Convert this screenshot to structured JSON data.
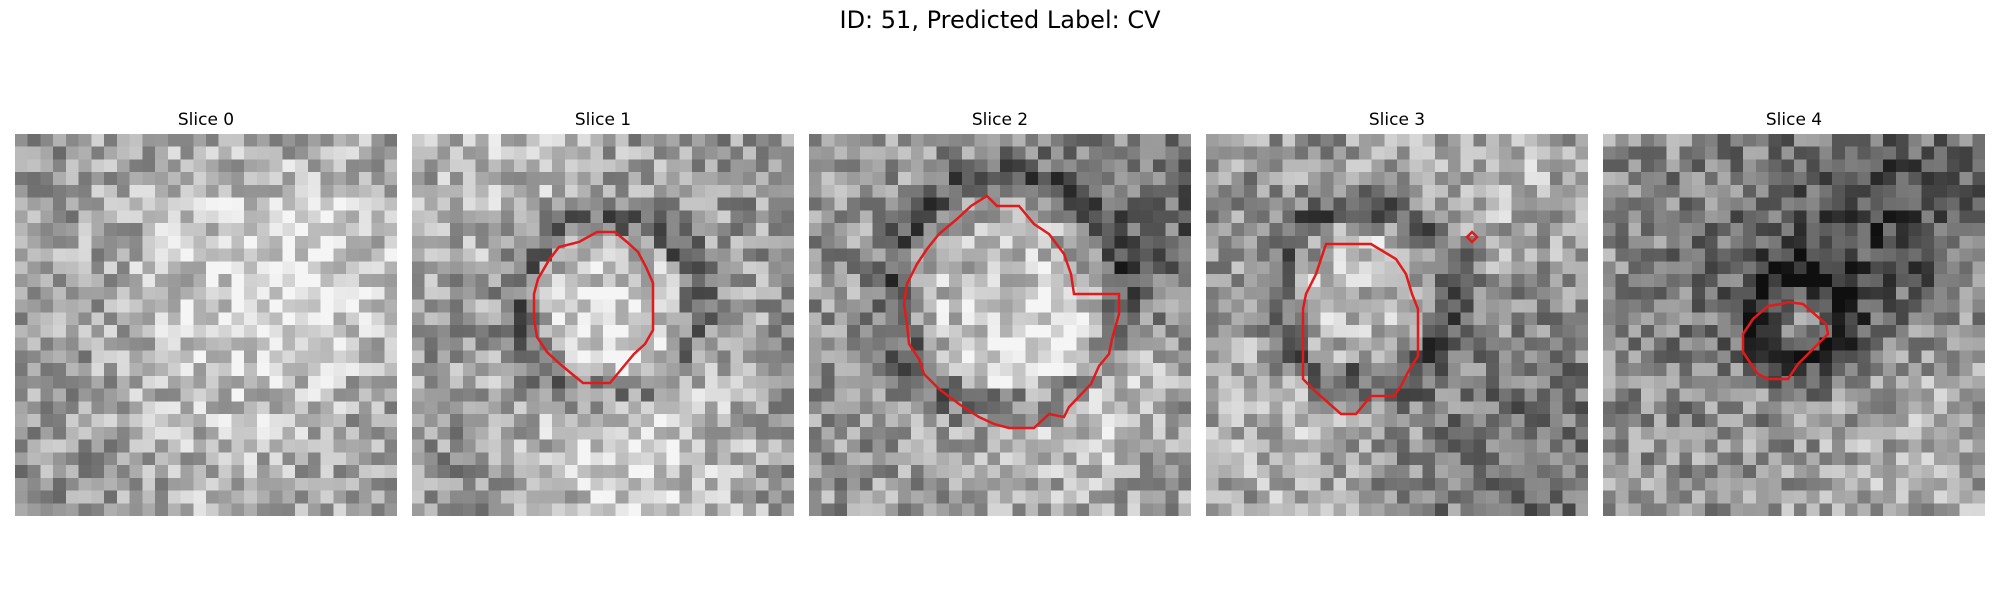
{
  "figure": {
    "title": "ID: 51, Predicted Label: CV",
    "contour_color": "#e11b1b"
  },
  "slices": [
    {
      "label": "Slice 0",
      "has_contour": false
    },
    {
      "label": "Slice 1",
      "has_contour": true
    },
    {
      "label": "Slice 2",
      "has_contour": true
    },
    {
      "label": "Slice 3",
      "has_contour": true
    },
    {
      "label": "Slice 4",
      "has_contour": true
    }
  ]
}
